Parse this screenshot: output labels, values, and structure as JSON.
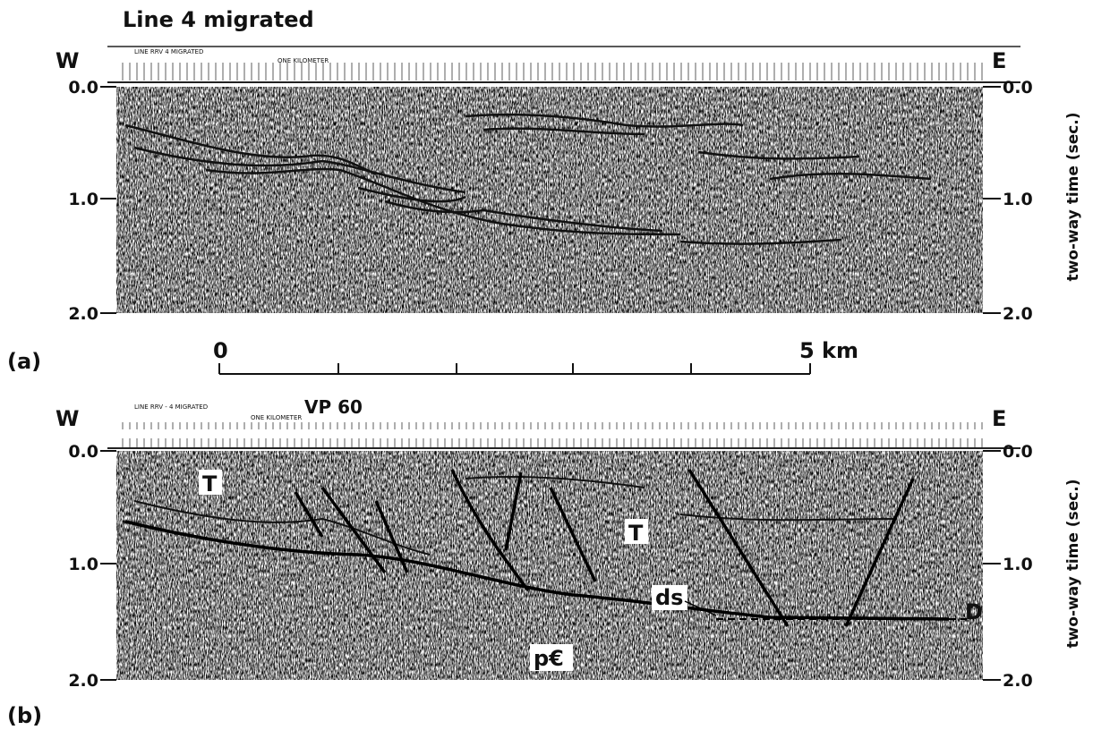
{
  "panel_a": {
    "title": "Line 4 migrated",
    "label": "(a)",
    "west": "W",
    "east": "E",
    "header": "LINE RRV  4 MIGRATED",
    "header_scale": "ONE KILOMETER",
    "left_ticks": [
      "0.0",
      "1.0",
      "2.0"
    ],
    "right_ticks": [
      "0.0",
      "1.0",
      "2.0"
    ],
    "axis_label": "two-way time (sec.)"
  },
  "scale_bar": {
    "start": "0",
    "end": "5 km"
  },
  "panel_b": {
    "label": "(b)",
    "west": "W",
    "east": "E",
    "header": "LINE RRV - 4 MIGRATED",
    "header_scale": "ONE KILOMETER",
    "vp": "VP 60",
    "left_ticks": [
      "0.0",
      "1.0",
      "2.0"
    ],
    "right_ticks": [
      "0.0",
      "1.0",
      "2.0"
    ],
    "axis_label": "two-way time (sec.)",
    "annotations": [
      "T",
      "T",
      "ds",
      "D",
      "p€"
    ]
  }
}
